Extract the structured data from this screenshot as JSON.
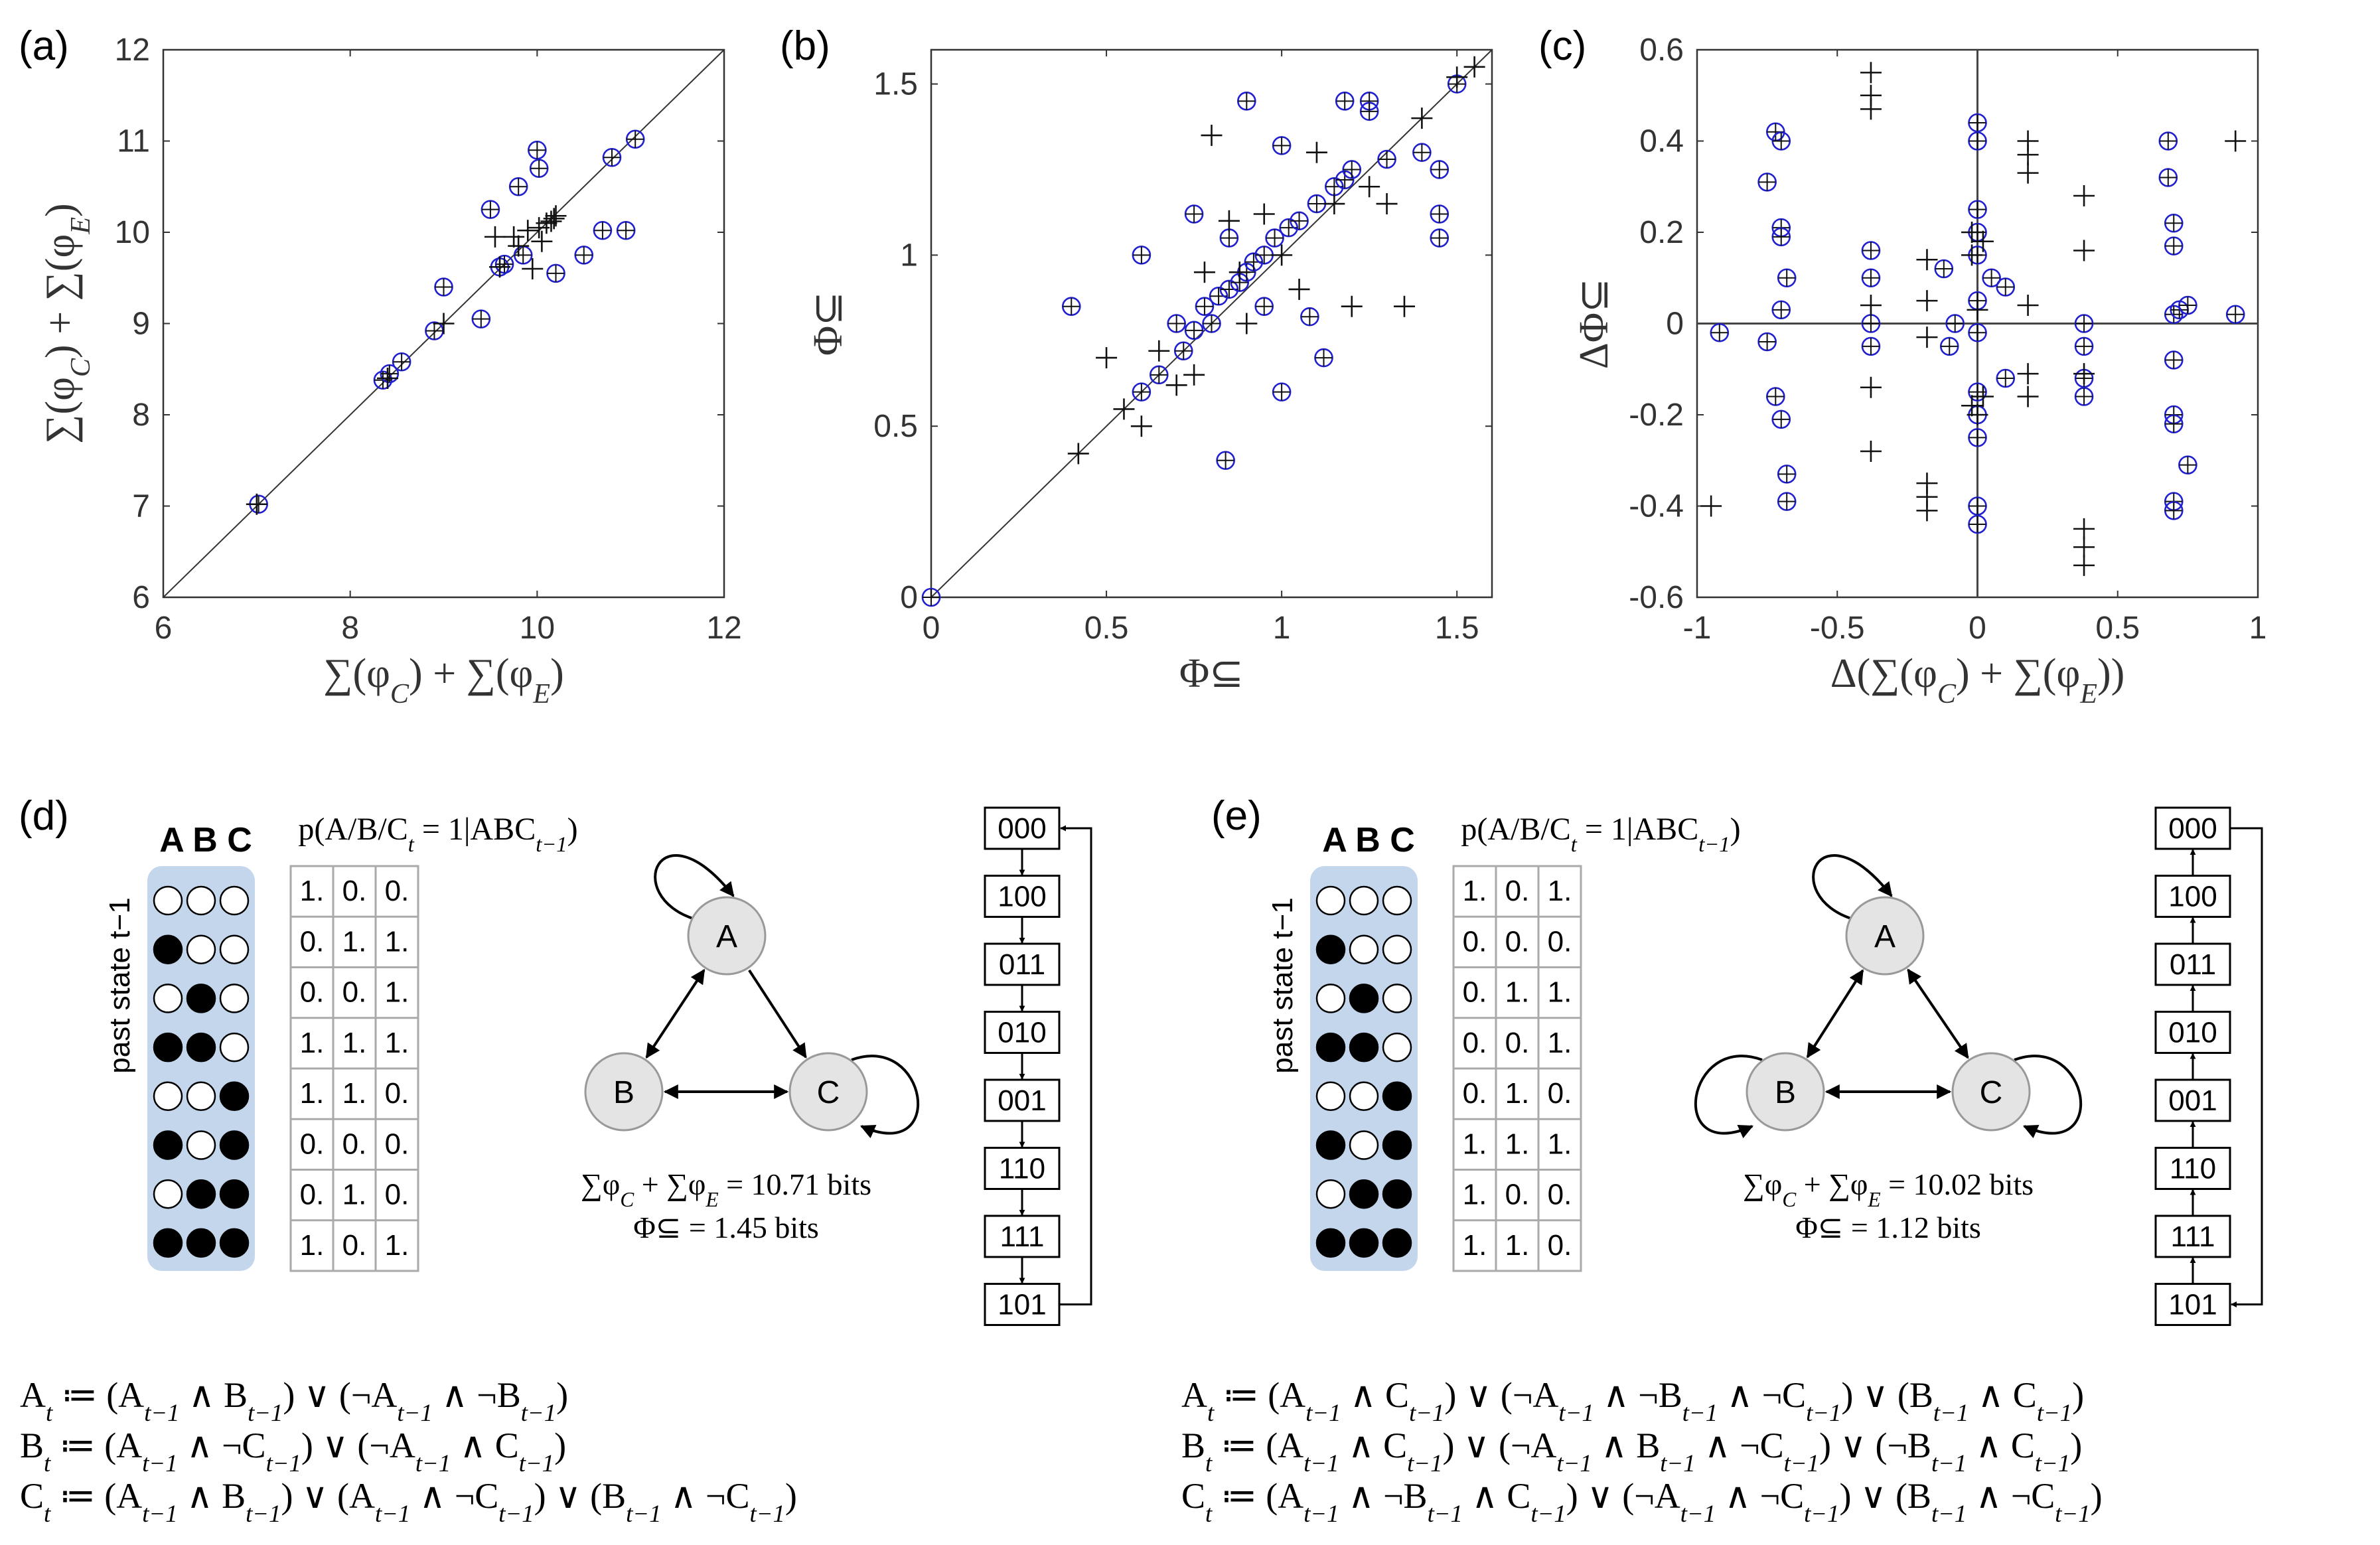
{
  "panels": {
    "a": {
      "tag": "(a)"
    },
    "b": {
      "tag": "(b)"
    },
    "c": {
      "tag": "(c)"
    },
    "d": {
      "tag": "(d)"
    },
    "e": {
      "tag": "(e)"
    }
  },
  "chart_data": [
    {
      "id": "a",
      "type": "scatter",
      "title": "",
      "xlabel": "∑(φ_C) + ∑(φ_E)",
      "ylabel": "∑(φ_C) + ∑(φ_E)",
      "xlim": [
        6,
        12
      ],
      "ylim": [
        6,
        12
      ],
      "xticks": [
        "6",
        "8",
        "10",
        "12"
      ],
      "yticks": [
        "6",
        "7",
        "8",
        "9",
        "10",
        "11",
        "12"
      ],
      "diagonal": true,
      "series": [
        {
          "name": "circle-plus",
          "marker": "circle-plus",
          "color": "#2020d0",
          "points": [
            [
              7.02,
              7.02
            ],
            [
              8.35,
              8.38
            ],
            [
              8.42,
              8.45
            ],
            [
              8.55,
              8.58
            ],
            [
              8.9,
              8.92
            ],
            [
              9.0,
              9.4
            ],
            [
              9.4,
              9.05
            ],
            [
              9.5,
              10.25
            ],
            [
              9.6,
              9.62
            ],
            [
              9.65,
              9.65
            ],
            [
              9.8,
              10.5
            ],
            [
              9.85,
              9.75
            ],
            [
              10.0,
              10.9
            ],
            [
              10.02,
              10.7
            ],
            [
              10.2,
              9.55
            ],
            [
              10.5,
              9.75
            ],
            [
              10.7,
              10.02
            ],
            [
              10.8,
              10.82
            ],
            [
              10.95,
              10.02
            ],
            [
              11.05,
              11.02
            ]
          ]
        },
        {
          "name": "plus",
          "marker": "plus",
          "color": "#111111",
          "points": [
            [
              7.0,
              7.02
            ],
            [
              8.4,
              8.4
            ],
            [
              9.0,
              9.0
            ],
            [
              9.55,
              9.95
            ],
            [
              9.6,
              9.62
            ],
            [
              9.75,
              9.95
            ],
            [
              9.8,
              9.85
            ],
            [
              9.9,
              10.02
            ],
            [
              9.95,
              9.6
            ],
            [
              10.02,
              10.05
            ],
            [
              10.05,
              9.9
            ],
            [
              10.1,
              10.1
            ],
            [
              10.15,
              10.12
            ],
            [
              10.18,
              10.15
            ],
            [
              10.2,
              10.18
            ]
          ]
        }
      ]
    },
    {
      "id": "b",
      "type": "scatter",
      "title": "",
      "xlabel": "Φ⊆",
      "ylabel": "Φ⊆",
      "xlim": [
        0,
        1.6
      ],
      "ylim": [
        0,
        1.6
      ],
      "xticks": [
        "0",
        "0.5",
        "1",
        "1.5"
      ],
      "yticks": [
        "0",
        "0.5",
        "1",
        "1.5"
      ],
      "diagonal": true,
      "series": [
        {
          "name": "circle-plus",
          "marker": "circle-plus",
          "color": "#2020d0",
          "points": [
            [
              0.0,
              0.0
            ],
            [
              0.4,
              0.85
            ],
            [
              0.6,
              1.0
            ],
            [
              0.6,
              0.6
            ],
            [
              0.65,
              0.65
            ],
            [
              0.7,
              0.8
            ],
            [
              0.72,
              0.72
            ],
            [
              0.75,
              0.78
            ],
            [
              0.78,
              0.85
            ],
            [
              0.8,
              0.8
            ],
            [
              0.82,
              0.88
            ],
            [
              0.84,
              0.4
            ],
            [
              0.85,
              0.9
            ],
            [
              0.88,
              0.92
            ],
            [
              0.9,
              0.95
            ],
            [
              0.92,
              0.98
            ],
            [
              0.95,
              0.85
            ],
            [
              0.95,
              1.0
            ],
            [
              0.98,
              1.05
            ],
            [
              1.0,
              1.32
            ],
            [
              1.0,
              0.6
            ],
            [
              1.02,
              1.08
            ],
            [
              1.05,
              1.1
            ],
            [
              1.08,
              0.82
            ],
            [
              1.1,
              1.15
            ],
            [
              1.12,
              0.7
            ],
            [
              1.15,
              1.2
            ],
            [
              1.18,
              1.22
            ],
            [
              1.2,
              1.25
            ],
            [
              1.25,
              1.45
            ],
            [
              1.25,
              1.42
            ],
            [
              1.3,
              1.28
            ],
            [
              1.4,
              1.3
            ],
            [
              1.45,
              1.25
            ],
            [
              1.45,
              1.12
            ],
            [
              1.45,
              1.05
            ],
            [
              1.5,
              1.5
            ],
            [
              1.18,
              1.45
            ],
            [
              0.9,
              1.45
            ],
            [
              0.75,
              1.12
            ],
            [
              0.85,
              1.05
            ]
          ]
        },
        {
          "name": "plus",
          "marker": "plus",
          "color": "#111111",
          "points": [
            [
              0.42,
              0.42
            ],
            [
              0.5,
              0.7
            ],
            [
              0.55,
              0.55
            ],
            [
              0.6,
              0.5
            ],
            [
              0.7,
              0.62
            ],
            [
              0.75,
              0.65
            ],
            [
              0.8,
              1.35
            ],
            [
              0.85,
              1.1
            ],
            [
              0.88,
              0.95
            ],
            [
              0.9,
              0.8
            ],
            [
              0.95,
              1.12
            ],
            [
              1.0,
              1.0
            ],
            [
              1.05,
              0.9
            ],
            [
              1.1,
              1.3
            ],
            [
              1.15,
              1.15
            ],
            [
              1.2,
              0.85
            ],
            [
              1.25,
              1.2
            ],
            [
              1.3,
              1.15
            ],
            [
              1.35,
              0.85
            ],
            [
              1.4,
              1.4
            ],
            [
              1.5,
              1.52
            ],
            [
              1.55,
              1.55
            ],
            [
              0.65,
              0.72
            ],
            [
              0.78,
              0.95
            ]
          ]
        }
      ]
    },
    {
      "id": "c",
      "type": "scatter",
      "title": "",
      "xlabel": "Δ(∑(φ_C) + ∑(φ_E))",
      "ylabel": "ΔΦ⊆",
      "xlim": [
        -1,
        1
      ],
      "ylim": [
        -0.6,
        0.6
      ],
      "xticks": [
        "-1",
        "-0.5",
        "0",
        "0.5",
        "1"
      ],
      "yticks": [
        "-0.6",
        "-0.4",
        "-0.2",
        "0",
        "0.2",
        "0.4",
        "0.6"
      ],
      "zero_lines": true,
      "series": [
        {
          "name": "circle-plus",
          "marker": "circle-plus",
          "color": "#2020d0",
          "points": [
            [
              -0.92,
              -0.02
            ],
            [
              -0.75,
              0.31
            ],
            [
              -0.75,
              -0.04
            ],
            [
              -0.72,
              0.42
            ],
            [
              -0.7,
              0.4
            ],
            [
              -0.7,
              0.21
            ],
            [
              -0.7,
              0.19
            ],
            [
              -0.7,
              0.03
            ],
            [
              -0.72,
              -0.16
            ],
            [
              -0.7,
              -0.21
            ],
            [
              -0.68,
              -0.33
            ],
            [
              -0.68,
              -0.39
            ],
            [
              -0.68,
              0.1
            ],
            [
              -0.38,
              0.16
            ],
            [
              -0.38,
              0.1
            ],
            [
              -0.38,
              0.0
            ],
            [
              -0.38,
              -0.05
            ],
            [
              -0.12,
              0.12
            ],
            [
              -0.1,
              -0.05
            ],
            [
              -0.08,
              0.0
            ],
            [
              0.0,
              0.44
            ],
            [
              0.0,
              0.4
            ],
            [
              0.0,
              0.25
            ],
            [
              0.0,
              0.2
            ],
            [
              0.0,
              0.15
            ],
            [
              0.0,
              0.05
            ],
            [
              0.0,
              -0.02
            ],
            [
              0.0,
              -0.15
            ],
            [
              0.0,
              -0.2
            ],
            [
              0.0,
              -0.25
            ],
            [
              0.0,
              -0.4
            ],
            [
              0.0,
              -0.44
            ],
            [
              0.05,
              0.1
            ],
            [
              0.1,
              0.08
            ],
            [
              0.1,
              -0.12
            ],
            [
              0.38,
              0.0
            ],
            [
              0.38,
              -0.05
            ],
            [
              0.38,
              -0.12
            ],
            [
              0.38,
              -0.16
            ],
            [
              0.68,
              0.4
            ],
            [
              0.68,
              0.32
            ],
            [
              0.7,
              0.22
            ],
            [
              0.7,
              0.17
            ],
            [
              0.7,
              0.02
            ],
            [
              0.7,
              -0.08
            ],
            [
              0.7,
              -0.2
            ],
            [
              0.7,
              -0.22
            ],
            [
              0.7,
              -0.39
            ],
            [
              0.7,
              -0.41
            ],
            [
              0.72,
              0.03
            ],
            [
              0.75,
              0.04
            ],
            [
              0.75,
              -0.31
            ],
            [
              0.92,
              0.02
            ]
          ]
        },
        {
          "name": "plus",
          "marker": "plus",
          "color": "#111111",
          "points": [
            [
              -0.95,
              -0.4
            ],
            [
              -0.38,
              0.55
            ],
            [
              -0.38,
              0.5
            ],
            [
              -0.38,
              0.47
            ],
            [
              -0.38,
              0.04
            ],
            [
              -0.38,
              -0.14
            ],
            [
              -0.38,
              -0.28
            ],
            [
              -0.18,
              0.14
            ],
            [
              -0.18,
              0.05
            ],
            [
              -0.18,
              -0.03
            ],
            [
              -0.18,
              -0.35
            ],
            [
              -0.18,
              -0.38
            ],
            [
              -0.18,
              -0.41
            ],
            [
              -0.02,
              0.2
            ],
            [
              -0.02,
              0.15
            ],
            [
              -0.02,
              -0.18
            ],
            [
              0.0,
              0.03
            ],
            [
              0.0,
              -0.2
            ],
            [
              0.02,
              0.18
            ],
            [
              0.02,
              -0.16
            ],
            [
              0.18,
              0.4
            ],
            [
              0.18,
              0.37
            ],
            [
              0.18,
              0.33
            ],
            [
              0.18,
              0.04
            ],
            [
              0.18,
              -0.11
            ],
            [
              0.18,
              -0.16
            ],
            [
              0.38,
              0.28
            ],
            [
              0.38,
              0.16
            ],
            [
              0.38,
              -0.11
            ],
            [
              0.38,
              -0.45
            ],
            [
              0.38,
              -0.49
            ],
            [
              0.38,
              -0.53
            ],
            [
              0.92,
              0.4
            ]
          ]
        }
      ]
    }
  ],
  "panel_d": {
    "header": "A B C",
    "prob_label": "p(A/B/C_t = 1|ABC_{t−1})",
    "past_label": "past state t−1",
    "states": [
      "000",
      "100",
      "010",
      "110",
      "001",
      "101",
      "011",
      "111"
    ],
    "table": [
      [
        "1.",
        "0.",
        "0."
      ],
      [
        "0.",
        "1.",
        "1."
      ],
      [
        "0.",
        "0.",
        "1."
      ],
      [
        "1.",
        "1.",
        "1."
      ],
      [
        "1.",
        "1.",
        "0."
      ],
      [
        "0.",
        "0.",
        "0."
      ],
      [
        "0.",
        "1.",
        "0."
      ],
      [
        "1.",
        "0.",
        "1."
      ]
    ],
    "nodes": [
      "A",
      "B",
      "C"
    ],
    "sum_line": "∑φ_C + ∑φ_E = 10.71 bits",
    "phi_line": "Φ⊆ = 1.45 bits",
    "sequence": [
      "000",
      "100",
      "011",
      "010",
      "001",
      "110",
      "111",
      "101"
    ],
    "eq_A": "A_t ≔ (A_{t−1} ∧ B_{t−1}) ∨ (¬A_{t−1} ∧ ¬B_{t−1})",
    "eq_B": "B_t ≔ (A_{t−1} ∧ ¬C_{t−1}) ∨ (¬A_{t−1} ∧ C_{t−1})",
    "eq_C": "C_t ≔ (A_{t−1} ∧ B_{t−1}) ∨ (A_{t−1} ∧ ¬C_{t−1}) ∨ (B_{t−1} ∧ ¬C_{t−1})"
  },
  "panel_e": {
    "header": "A B C",
    "prob_label": "p(A/B/C_t = 1|ABC_{t−1})",
    "past_label": "past state t−1",
    "states": [
      "000",
      "100",
      "010",
      "110",
      "001",
      "101",
      "011",
      "111"
    ],
    "table": [
      [
        "1.",
        "0.",
        "1."
      ],
      [
        "0.",
        "0.",
        "0."
      ],
      [
        "0.",
        "1.",
        "1."
      ],
      [
        "0.",
        "0.",
        "1."
      ],
      [
        "0.",
        "1.",
        "0."
      ],
      [
        "1.",
        "1.",
        "1."
      ],
      [
        "1.",
        "0.",
        "0."
      ],
      [
        "1.",
        "1.",
        "0."
      ]
    ],
    "nodes": [
      "A",
      "B",
      "C"
    ],
    "sum_line": "∑φ_C + ∑φ_E = 10.02 bits",
    "phi_line": "Φ⊆ = 1.12 bits",
    "sequence": [
      "000",
      "100",
      "011",
      "010",
      "001",
      "110",
      "111",
      "101"
    ],
    "eq_A": "A_t ≔ (A_{t−1} ∧ C_{t−1}) ∨ (¬A_{t−1} ∧ ¬B_{t−1} ∧ ¬C_{t−1}) ∨ (B_{t−1} ∧ C_{t−1})",
    "eq_B": "B_t ≔ (A_{t−1} ∧ C_{t−1}) ∨ (¬A_{t−1} ∧ B_{t−1} ∧ ¬C_{t−1}) ∨ (¬B_{t−1} ∧ C_{t−1})",
    "eq_C": "C_t ≔ (A_{t−1} ∧ ¬B_{t−1} ∧ C_{t−1}) ∨ (¬A_{t−1} ∧ ¬C_{t−1}) ∨ (B_{t−1} ∧ ¬C_{t−1})"
  }
}
